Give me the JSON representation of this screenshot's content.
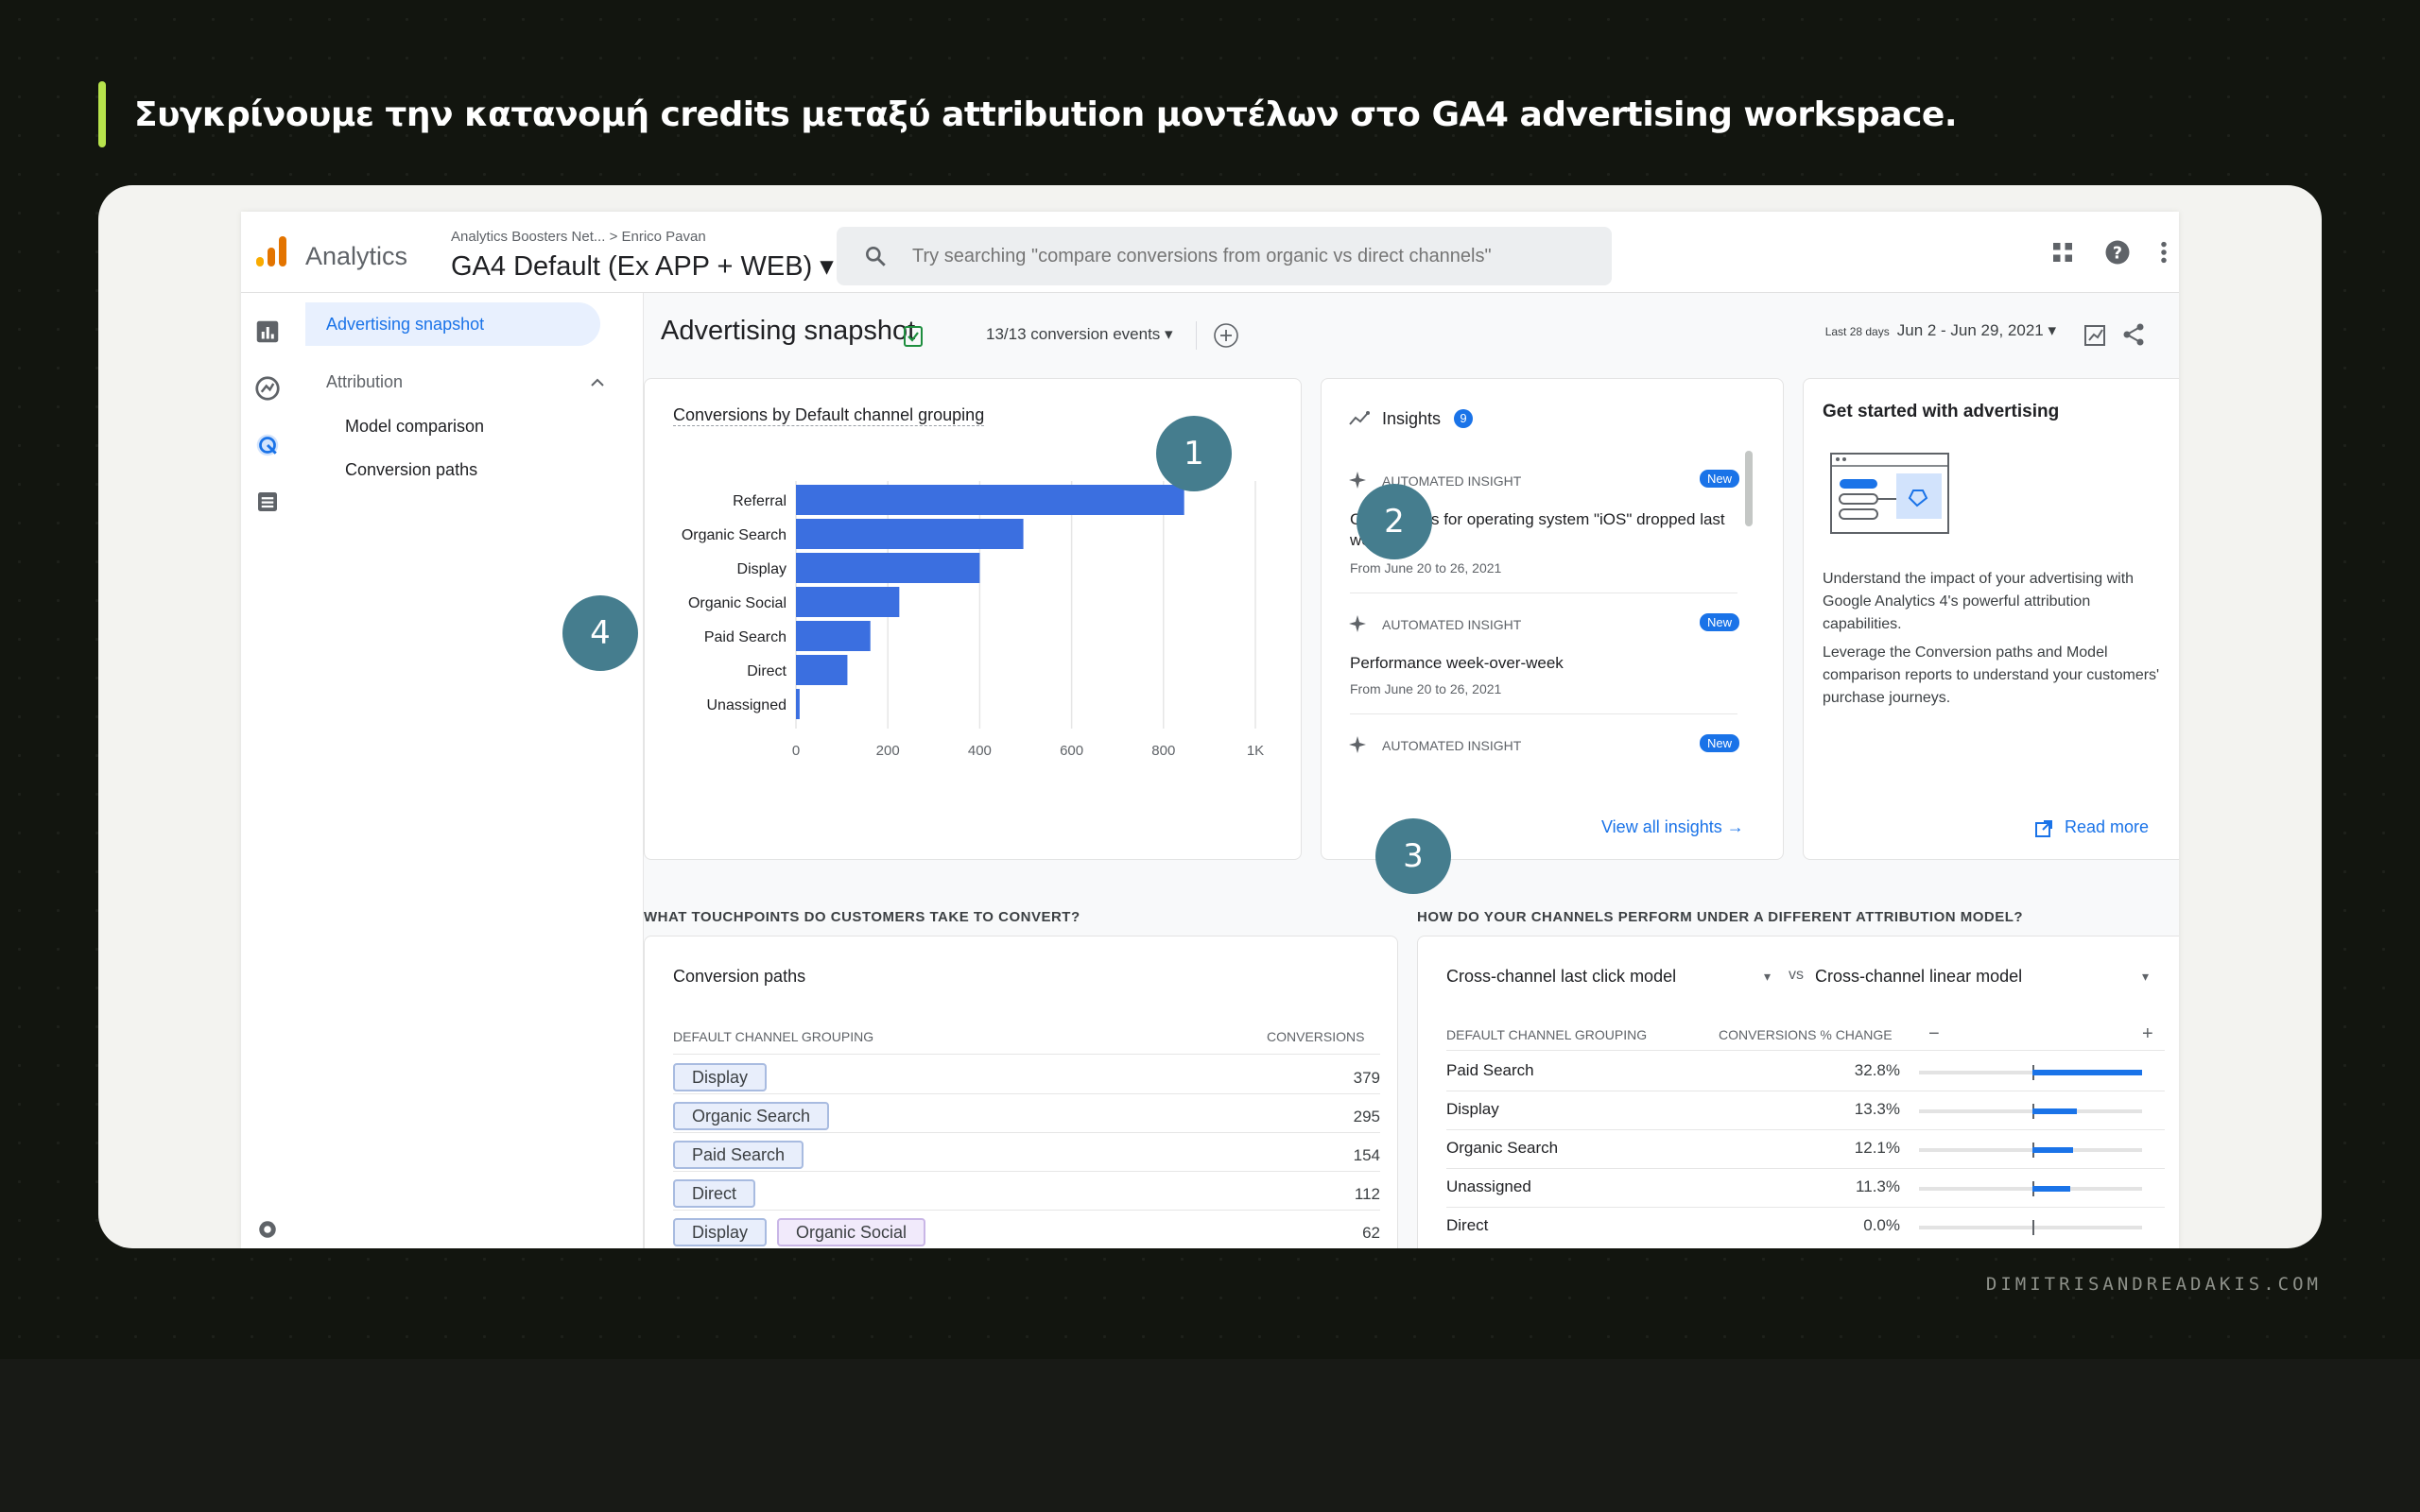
{
  "headline": "Συγκρίνουμε την κατανομή credits μεταξύ attribution μοντέλων στο GA4 advertising workspace.",
  "footer": "DIMITRISANDREADAKIS.COM",
  "ga": {
    "app_name": "Analytics",
    "breadcrumb": "Analytics Boosters Net... > Enrico Pavan",
    "property": "GA4 Default (Ex APP + WEB) ▾",
    "search_placeholder": "Try searching \"compare conversions from organic vs direct channels\"",
    "page_title": "Advertising snapshot",
    "conversion_events": "13/13 conversion events ▾",
    "date_label": "Last 28 days",
    "date_range": "Jun 2 - Jun 29, 2021 ▾"
  },
  "nav": {
    "active": "Advertising snapshot",
    "section": "Attribution",
    "items": [
      "Model comparison",
      "Conversion paths"
    ]
  },
  "markers": [
    "1",
    "2",
    "3",
    "4"
  ],
  "chart_data": {
    "type": "bar",
    "title": "Conversions by Default channel grouping",
    "categories": [
      "Referral",
      "Organic Search",
      "Display",
      "Organic Social",
      "Paid Search",
      "Direct",
      "Unassigned"
    ],
    "values": [
      845,
      495,
      400,
      225,
      162,
      112,
      8
    ],
    "xlim": [
      0,
      1000
    ],
    "ticks": [
      "0",
      "200",
      "400",
      "600",
      "800",
      "1K"
    ],
    "color": "#3b6fe0",
    "grid": true
  },
  "insights": {
    "title": "Insights",
    "count": "9",
    "label": "AUTOMATED INSIGHT",
    "badge": "New",
    "items": [
      {
        "title": "Conversions for operating system \"iOS\" dropped last week",
        "date": "From June 20 to 26, 2021"
      },
      {
        "title": "Performance week-over-week",
        "date": "From June 20 to 26, 2021"
      }
    ],
    "view_all": "View all insights →"
  },
  "get_started": {
    "title": "Get started with advertising",
    "para1": "Understand the impact of your advertising with Google Analytics 4's powerful attribution capabilities.",
    "para2": "Leverage the Conversion paths and Model comparison reports to understand your customers' purchase journeys.",
    "read_more": "Read more"
  },
  "touchpoints": {
    "section": "WHAT TOUCHPOINTS DO CUSTOMERS TAKE TO CONVERT?",
    "title": "Conversion paths",
    "col1": "DEFAULT CHANNEL GROUPING",
    "col2": "CONVERSIONS",
    "rows": [
      {
        "chips": [
          "Display"
        ],
        "value": "379"
      },
      {
        "chips": [
          "Organic Search"
        ],
        "value": "295"
      },
      {
        "chips": [
          "Paid Search"
        ],
        "value": "154"
      },
      {
        "chips": [
          "Direct"
        ],
        "value": "112"
      },
      {
        "chips": [
          "Display",
          "Organic Social"
        ],
        "value": "62"
      }
    ]
  },
  "comparison": {
    "section": "HOW DO YOUR CHANNELS PERFORM UNDER A DIFFERENT ATTRIBUTION MODEL?",
    "model_a": "Cross-channel last click model",
    "vs": "vs",
    "model_b": "Cross-channel linear model",
    "col1": "DEFAULT CHANNEL GROUPING",
    "col2": "CONVERSIONS % CHANGE",
    "minus": "−",
    "plus": "+",
    "rows": [
      {
        "name": "Paid Search",
        "change": "32.8%",
        "pct": 32.8
      },
      {
        "name": "Display",
        "change": "13.3%",
        "pct": 13.3
      },
      {
        "name": "Organic Search",
        "change": "12.1%",
        "pct": 12.1
      },
      {
        "name": "Unassigned",
        "change": "11.3%",
        "pct": 11.3
      },
      {
        "name": "Direct",
        "change": "0.0%",
        "pct": 0.0
      }
    ]
  },
  "colors": {
    "accent": "#b7e34c",
    "ga_blue": "#1a73e8",
    "marker": "#457d8e"
  }
}
